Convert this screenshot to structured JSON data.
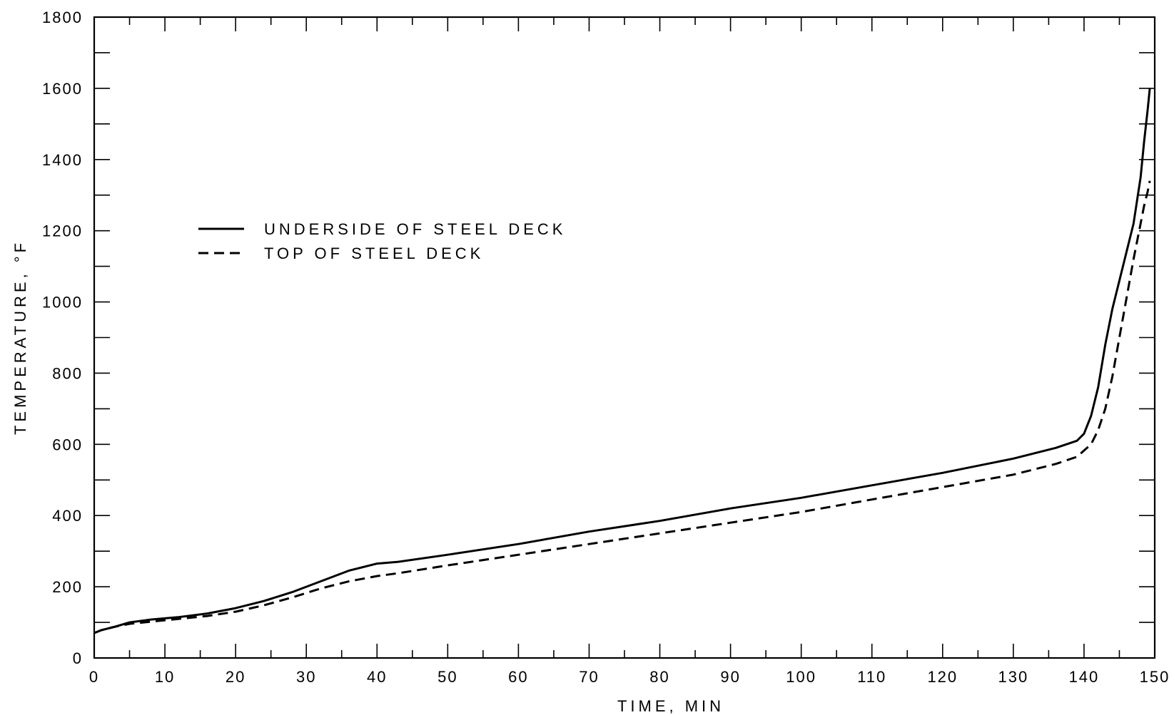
{
  "chart_data": {
    "type": "line",
    "title": "",
    "xlabel": "TIME, MIN",
    "ylabel": "TEMPERATURE, °F",
    "xlim": [
      0,
      150
    ],
    "ylim": [
      0,
      1800
    ],
    "xticks": [
      0,
      10,
      20,
      30,
      40,
      50,
      60,
      70,
      80,
      90,
      100,
      110,
      120,
      130,
      140,
      150
    ],
    "yticks": [
      0,
      200,
      400,
      600,
      800,
      1000,
      1200,
      1400,
      1600,
      1800
    ],
    "x_minor_step": 5,
    "y_minor_step": 100,
    "grid": false,
    "legend_position": "upper-left",
    "series": [
      {
        "name": "UNDERSIDE OF STEEL DECK",
        "style": "solid",
        "color": "#000000",
        "x": [
          0,
          1,
          3,
          5,
          8,
          12,
          16,
          20,
          24,
          28,
          32,
          36,
          40,
          43,
          50,
          60,
          70,
          80,
          90,
          100,
          110,
          120,
          130,
          136,
          139,
          140,
          141,
          142,
          143,
          144,
          145,
          146,
          147,
          148,
          148.5,
          149,
          149.3
        ],
        "y": [
          70,
          78,
          88,
          100,
          108,
          115,
          125,
          140,
          160,
          185,
          215,
          245,
          265,
          270,
          290,
          320,
          355,
          385,
          420,
          450,
          485,
          520,
          560,
          590,
          610,
          630,
          680,
          760,
          880,
          980,
          1060,
          1140,
          1220,
          1350,
          1450,
          1540,
          1600
        ]
      },
      {
        "name": "TOP OF STEEL DECK",
        "style": "dashed",
        "color": "#000000",
        "x": [
          0,
          1,
          3,
          5,
          8,
          12,
          16,
          20,
          24,
          28,
          32,
          36,
          40,
          43,
          50,
          60,
          70,
          80,
          90,
          100,
          110,
          120,
          130,
          136,
          139,
          141,
          142,
          143,
          144,
          145,
          146,
          147,
          148,
          148.5,
          149,
          149.3
        ],
        "y": [
          70,
          78,
          88,
          96,
          102,
          110,
          118,
          130,
          148,
          170,
          195,
          215,
          230,
          238,
          260,
          290,
          320,
          350,
          380,
          410,
          445,
          480,
          515,
          545,
          565,
          600,
          640,
          700,
          790,
          900,
          1010,
          1120,
          1220,
          1270,
          1310,
          1340
        ]
      }
    ]
  }
}
